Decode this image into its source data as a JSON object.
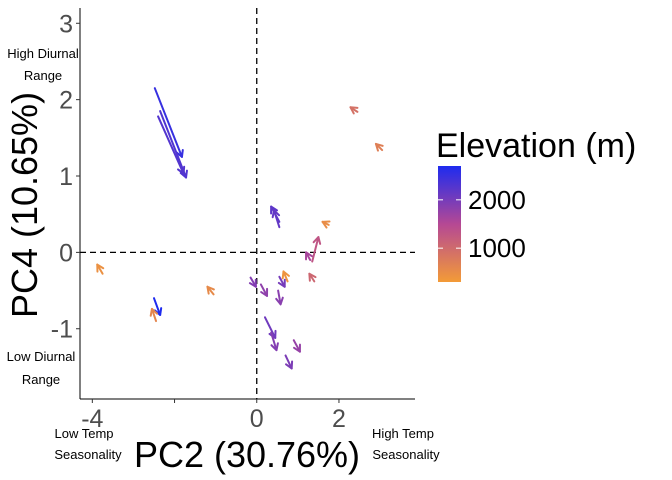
{
  "chart_data": {
    "type": "scatter",
    "title": "",
    "xlabel": "PC2 (30.76%)",
    "ylabel": "PC4 (10.65%)",
    "xlim": [
      -4.3,
      3.85
    ],
    "ylim": [
      -1.92,
      3.2
    ],
    "x_ticks": [
      -4,
      0,
      2
    ],
    "x_tick_labels": [
      "-4",
      "0",
      "2"
    ],
    "x_tick_partial": [
      -2
    ],
    "y_ticks": [
      -1,
      0,
      1,
      2,
      3
    ],
    "y_tick_labels": [
      "-1",
      "0",
      "1",
      "2",
      "3"
    ],
    "grid": false,
    "reference_lines": {
      "x": 0,
      "y": 0,
      "style": "dashed"
    },
    "annotations": {
      "y_high_line1": "High Diurnal",
      "y_high_line2": "Range",
      "y_low_line1": "Low Diurnal",
      "y_low_line2": "Range",
      "x_low_line1": "Low Temp",
      "x_low_line2": "Seasonality",
      "x_high_line1": "High Temp",
      "x_high_line2": "Seasonality"
    },
    "legend": {
      "title": "Elevation (m)",
      "position": "right",
      "breaks": [
        2000,
        1000
      ],
      "break_labels": [
        "2000",
        "1000"
      ],
      "range": [
        300,
        2700
      ],
      "color_low": "#F39B37",
      "color_high": "#1E2BEF"
    },
    "arrows": [
      {
        "x0": -2.48,
        "y0": 2.15,
        "x1": -1.82,
        "y1": 1.25,
        "elev": 2500
      },
      {
        "x0": -2.35,
        "y0": 1.85,
        "x1": -1.72,
        "y1": 0.98,
        "elev": 2300
      },
      {
        "x0": -2.4,
        "y0": 1.78,
        "x1": -1.78,
        "y1": 1.03,
        "elev": 2280
      },
      {
        "x0": -2.5,
        "y0": -0.6,
        "x1": -2.35,
        "y1": -0.82,
        "elev": 2700
      },
      {
        "x0": -2.45,
        "y0": -0.9,
        "x1": -2.55,
        "y1": -0.74,
        "elev": 600
      },
      {
        "x0": -3.75,
        "y0": -0.28,
        "x1": -3.88,
        "y1": -0.16,
        "elev": 450
      },
      {
        "x0": -1.05,
        "y0": -0.55,
        "x1": -1.2,
        "y1": -0.45,
        "elev": 550
      },
      {
        "x0": 2.45,
        "y0": 1.84,
        "x1": 2.28,
        "y1": 1.9,
        "elev": 900
      },
      {
        "x0": 3.05,
        "y0": 1.34,
        "x1": 2.9,
        "y1": 1.42,
        "elev": 700
      },
      {
        "x0": 0.55,
        "y0": 0.4,
        "x1": 0.35,
        "y1": 0.6,
        "elev": 2200
      },
      {
        "x0": 0.55,
        "y0": 0.33,
        "x1": 0.42,
        "y1": 0.55,
        "elev": 2150
      },
      {
        "x0": 1.75,
        "y0": 0.36,
        "x1": 1.6,
        "y1": 0.4,
        "elev": 500
      },
      {
        "x0": 1.35,
        "y0": -0.12,
        "x1": 1.5,
        "y1": 0.2,
        "elev": 1300
      },
      {
        "x0": 1.3,
        "y0": -0.1,
        "x1": 1.2,
        "y1": 0.0,
        "elev": 1600
      },
      {
        "x0": 0.75,
        "y0": -0.38,
        "x1": 0.65,
        "y1": -0.25,
        "elev": 400
      },
      {
        "x0": 1.4,
        "y0": -0.38,
        "x1": 1.28,
        "y1": -0.28,
        "elev": 1050
      },
      {
        "x0": -0.15,
        "y0": -0.33,
        "x1": -0.02,
        "y1": -0.45,
        "elev": 1900
      },
      {
        "x0": 0.55,
        "y0": -0.32,
        "x1": 0.68,
        "y1": -0.45,
        "elev": 2000
      },
      {
        "x0": 0.52,
        "y0": -0.5,
        "x1": 0.58,
        "y1": -0.68,
        "elev": 1850
      },
      {
        "x0": 0.1,
        "y0": -0.42,
        "x1": 0.25,
        "y1": -0.57,
        "elev": 1800
      },
      {
        "x0": 0.2,
        "y0": -0.85,
        "x1": 0.45,
        "y1": -1.12,
        "elev": 2050
      },
      {
        "x0": 0.35,
        "y0": -1.05,
        "x1": 0.48,
        "y1": -1.28,
        "elev": 1900
      },
      {
        "x0": 0.9,
        "y0": -1.15,
        "x1": 1.05,
        "y1": -1.3,
        "elev": 1750
      },
      {
        "x0": 0.7,
        "y0": -1.35,
        "x1": 0.85,
        "y1": -1.52,
        "elev": 1950
      }
    ]
  }
}
